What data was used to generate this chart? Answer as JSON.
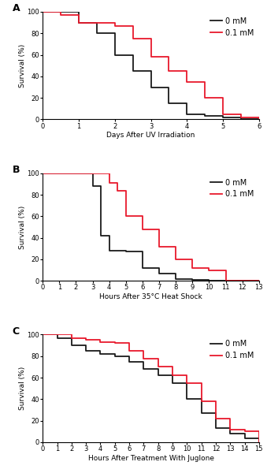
{
  "panel_A": {
    "label": "A",
    "xlabel": "Days After UV Irradiation",
    "ylabel": "Survival (%)",
    "xlim": [
      0,
      6
    ],
    "ylim": [
      0,
      100
    ],
    "xticks": [
      0,
      1,
      2,
      3,
      4,
      5,
      6
    ],
    "yticks": [
      0,
      20,
      40,
      60,
      80,
      100
    ],
    "black_x": [
      0,
      1,
      1.5,
      2,
      2.5,
      3,
      3.5,
      4,
      4.5,
      5,
      5.5,
      6
    ],
    "black_y": [
      100,
      90,
      80,
      60,
      45,
      30,
      15,
      5,
      3,
      2,
      0,
      0
    ],
    "red_x": [
      0,
      0.5,
      1,
      2,
      2.5,
      3,
      3.5,
      4,
      4.5,
      5,
      5.5,
      6
    ],
    "red_y": [
      100,
      97,
      90,
      87,
      75,
      58,
      45,
      35,
      20,
      5,
      2,
      0
    ]
  },
  "panel_B": {
    "label": "B",
    "xlabel": "Hours After 35°C Heat Shock",
    "ylabel": "Survival (%)",
    "xlim": [
      0,
      13
    ],
    "ylim": [
      0,
      100
    ],
    "xticks": [
      0,
      1,
      2,
      3,
      4,
      5,
      6,
      7,
      8,
      9,
      10,
      11,
      12,
      13
    ],
    "yticks": [
      0,
      20,
      40,
      60,
      80,
      100
    ],
    "black_x": [
      0,
      3,
      3.5,
      4,
      5,
      6,
      7,
      8,
      9,
      10,
      10.5,
      13
    ],
    "black_y": [
      100,
      88,
      42,
      28,
      27,
      12,
      7,
      2,
      1,
      0,
      0,
      0
    ],
    "red_x": [
      0,
      3,
      4,
      4.5,
      5,
      6,
      7,
      8,
      9,
      10,
      11,
      12,
      13
    ],
    "red_y": [
      100,
      100,
      91,
      84,
      60,
      48,
      32,
      20,
      12,
      10,
      0,
      0,
      0
    ]
  },
  "panel_C": {
    "label": "C",
    "xlabel": "Hours After Treatment With Juglone",
    "ylabel": "Survival (%)",
    "xlim": [
      0,
      15
    ],
    "ylim": [
      0,
      100
    ],
    "xticks": [
      0,
      1,
      2,
      3,
      4,
      5,
      6,
      7,
      8,
      9,
      10,
      11,
      12,
      13,
      14,
      15
    ],
    "yticks": [
      0,
      20,
      40,
      60,
      80,
      100
    ],
    "black_x": [
      0,
      1,
      2,
      3,
      4,
      5,
      6,
      7,
      8,
      9,
      10,
      11,
      12,
      13,
      14,
      15
    ],
    "black_y": [
      100,
      97,
      90,
      85,
      82,
      80,
      75,
      68,
      62,
      55,
      40,
      27,
      13,
      8,
      4,
      0
    ],
    "red_x": [
      0,
      1,
      2,
      3,
      4,
      5,
      6,
      7,
      8,
      9,
      10,
      11,
      12,
      13,
      14,
      15
    ],
    "red_y": [
      100,
      100,
      97,
      95,
      93,
      92,
      85,
      78,
      70,
      62,
      55,
      38,
      22,
      12,
      10,
      0
    ]
  },
  "black_color": "#1a1a1a",
  "red_color": "#e8192c",
  "legend_labels": [
    "0 mM",
    "0.1 mM"
  ],
  "linewidth": 1.3,
  "font_size_label": 6.5,
  "font_size_tick": 6,
  "font_size_legend": 7,
  "font_size_panel_label": 9
}
